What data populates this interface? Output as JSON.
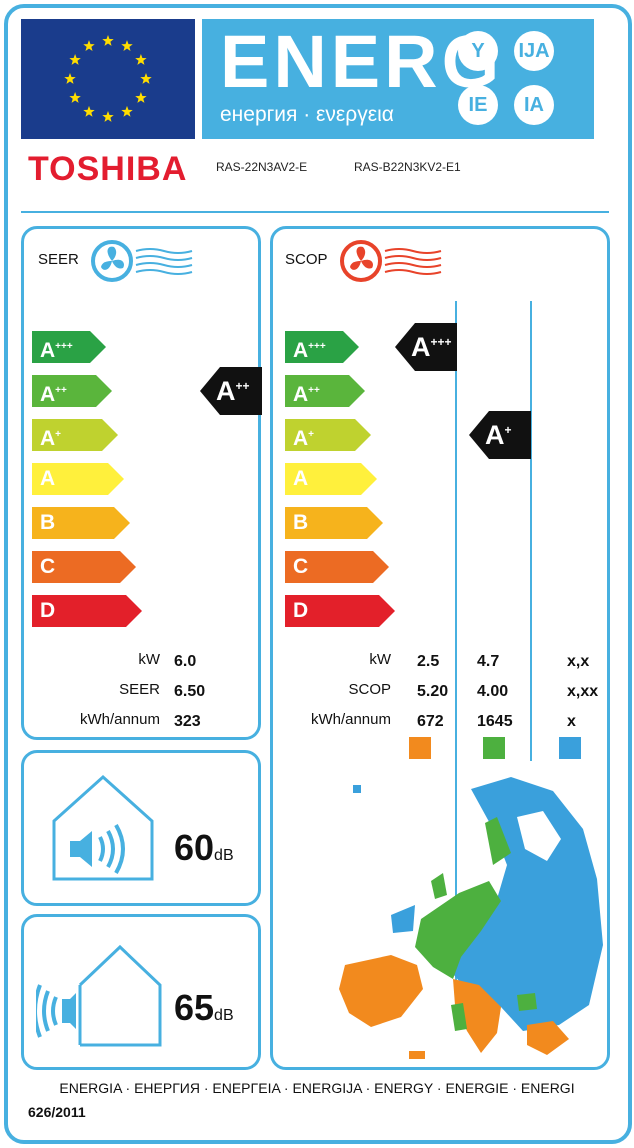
{
  "header": {
    "energy_word": "ENERG",
    "energy_subtitle": "енергия · ενεργεια",
    "suffixes": [
      "Y",
      "IJA",
      "IE",
      "IA"
    ]
  },
  "supplier": {
    "brand": "TOSHIBA",
    "model_indoor": "RAS-22N3AV2-E",
    "model_outdoor": "RAS-B22N3KV2-E1"
  },
  "scale": [
    "A+++",
    "A++",
    "A+",
    "A",
    "B",
    "C",
    "D"
  ],
  "seer": {
    "title": "SEER",
    "class": "A++",
    "labels": {
      "kw": "kW",
      "ratio": "SEER",
      "annual": "kWh/annum"
    },
    "kw": "6.0",
    "seer": "6.50",
    "annual": "323"
  },
  "scop": {
    "title": "SCOP",
    "labels": {
      "kw": "kW",
      "ratio": "SCOP",
      "annual": "kWh/annum"
    },
    "zones": [
      {
        "class": "A+++",
        "kw": "2.5",
        "scop": "5.20",
        "annual": "672",
        "color": "#f28a1e"
      },
      {
        "class": "A+",
        "kw": "4.7",
        "scop": "4.00",
        "annual": "1645",
        "color": "#4db03f"
      },
      {
        "class": "",
        "kw": "x,x",
        "scop": "x,xx",
        "annual": "x",
        "color": "#3aa0dc"
      }
    ]
  },
  "noise": {
    "indoor_value": "60",
    "outdoor_value": "65",
    "unit": "dB"
  },
  "footer": {
    "languages": "ENERGIA · ЕНЕРГИЯ · ΕΝΕΡΓΕΙΑ · ENERGIJA · ENERGY · ENERGIE · ENERGI",
    "regulation": "626/2011"
  },
  "colors": {
    "frame": "#47b0e0",
    "eu_blue": "#1a3c8c",
    "eu_star": "#ffdd00",
    "brand_red": "#e31d2f",
    "class_colors": [
      "#2aa245",
      "#5ab53c",
      "#bfd22f",
      "#fff03c",
      "#f6b31c",
      "#ec6b23",
      "#e3202a"
    ]
  }
}
